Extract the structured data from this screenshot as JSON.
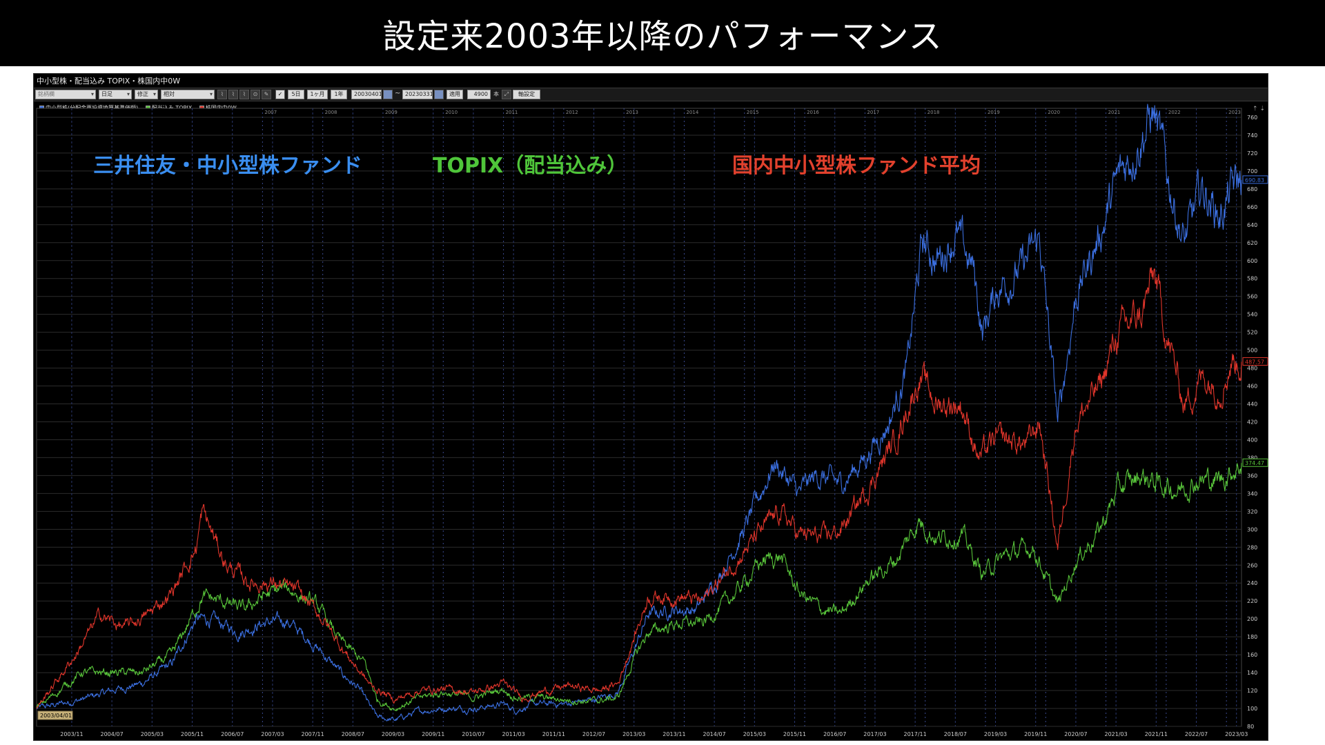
{
  "slide": {
    "title": "設定来2003年以降のパフォーマンス"
  },
  "window": {
    "title": "中小型株・配当込み TOPIX・株国内中0W"
  },
  "toolbar": {
    "search_placeholder": "銘柄欄",
    "period_select": "日足",
    "adjust_select": "修正",
    "mode_select": "相対",
    "btn_5d": "5日",
    "btn_1m": "1ヶ月",
    "btn_1y": "1年",
    "start_date": "20030401",
    "range_sep": "~",
    "end_date": "20230331",
    "apply": "適用",
    "count": "4900",
    "count_unit": "本",
    "axis_settings": "軸設定"
  },
  "legend": [
    {
      "label": "中小型株(分配金再投資換算基準価額)",
      "color": "#3b6fe0"
    },
    {
      "label": "配当込み TOPIX",
      "color": "#58c43a"
    },
    {
      "label": "株国内中0W",
      "color": "#e0352b"
    }
  ],
  "annotations": [
    {
      "text": "三井住友・中小型株ファンド",
      "color": "#3a8ef0"
    },
    {
      "text": "TOPIX（配当込み）",
      "color": "#4fc53a"
    },
    {
      "text": "国内中小型株ファンド平均",
      "color": "#e2412d"
    }
  ],
  "chart_data": {
    "type": "line",
    "x_range": [
      "2003/04/01",
      "2023/03/31"
    ],
    "start_label": "2003/04/01",
    "ylim": [
      80,
      770
    ],
    "y_ticks": [
      80,
      100,
      120,
      140,
      160,
      180,
      200,
      220,
      240,
      260,
      280,
      300,
      320,
      340,
      360,
      380,
      400,
      420,
      440,
      460,
      480,
      500,
      520,
      540,
      560,
      580,
      600,
      620,
      640,
      660,
      680,
      700,
      720,
      740,
      760
    ],
    "x_ticks": [
      "2003/11",
      "2004/07",
      "2005/03",
      "2005/11",
      "2006/07",
      "2007/03",
      "2007/11",
      "2008/07",
      "2009/03",
      "2009/11",
      "2010/07",
      "2011/03",
      "2011/11",
      "2012/07",
      "2013/03",
      "2013/11",
      "2014/07",
      "2015/03",
      "2015/11",
      "2016/07",
      "2017/03",
      "2017/11",
      "2018/07",
      "2019/03",
      "2019/11",
      "2020/07",
      "2021/03",
      "2021/11",
      "2022/07",
      "2023/03"
    ],
    "year_labels": [
      "2007",
      "2008",
      "2009",
      "2010",
      "2011",
      "2012",
      "2013",
      "2014",
      "2015",
      "2016",
      "2017",
      "2018",
      "2019",
      "2020",
      "2021",
      "2022",
      "2023"
    ],
    "series": [
      {
        "name": "中小型株(分配金再投資換算基準価額)",
        "color": "#3b6fe0",
        "last_label": "690.83",
        "points": [
          [
            2003.25,
            100
          ],
          [
            2004.0,
            110
          ],
          [
            2004.5,
            120
          ],
          [
            2005.0,
            128
          ],
          [
            2005.5,
            150
          ],
          [
            2005.9,
            200
          ],
          [
            2006.2,
            198
          ],
          [
            2006.6,
            185
          ],
          [
            2007.0,
            195
          ],
          [
            2007.4,
            198
          ],
          [
            2007.8,
            175
          ],
          [
            2008.3,
            140
          ],
          [
            2008.6,
            122
          ],
          [
            2008.9,
            90
          ],
          [
            2009.2,
            87
          ],
          [
            2009.6,
            97
          ],
          [
            2010.0,
            100
          ],
          [
            2010.5,
            100
          ],
          [
            2011.0,
            105
          ],
          [
            2011.2,
            98
          ],
          [
            2011.5,
            105
          ],
          [
            2012.0,
            105
          ],
          [
            2012.5,
            110
          ],
          [
            2012.9,
            118
          ],
          [
            2013.2,
            170
          ],
          [
            2013.4,
            205
          ],
          [
            2013.8,
            210
          ],
          [
            2014.2,
            210
          ],
          [
            2014.6,
            250
          ],
          [
            2015.0,
            300
          ],
          [
            2015.5,
            375
          ],
          [
            2015.9,
            340
          ],
          [
            2016.2,
            360
          ],
          [
            2016.6,
            350
          ],
          [
            2017.0,
            380
          ],
          [
            2017.4,
            420
          ],
          [
            2017.7,
            480
          ],
          [
            2017.95,
            620
          ],
          [
            2018.2,
            600
          ],
          [
            2018.5,
            630
          ],
          [
            2018.8,
            590
          ],
          [
            2018.95,
            520
          ],
          [
            2019.2,
            570
          ],
          [
            2019.6,
            590
          ],
          [
            2019.9,
            625
          ],
          [
            2020.2,
            420
          ],
          [
            2020.5,
            560
          ],
          [
            2020.9,
            630
          ],
          [
            2021.2,
            690
          ],
          [
            2021.5,
            730
          ],
          [
            2021.8,
            765
          ],
          [
            2022.0,
            700
          ],
          [
            2022.3,
            620
          ],
          [
            2022.6,
            680
          ],
          [
            2022.9,
            650
          ],
          [
            2023.1,
            680
          ],
          [
            2023.25,
            690
          ]
        ]
      },
      {
        "name": "配当込み TOPIX",
        "color": "#58c43a",
        "last_label": "374.47",
        "points": [
          [
            2003.25,
            100
          ],
          [
            2004.0,
            140
          ],
          [
            2004.5,
            140
          ],
          [
            2005.0,
            140
          ],
          [
            2005.5,
            160
          ],
          [
            2006.0,
            225
          ],
          [
            2006.3,
            220
          ],
          [
            2006.7,
            210
          ],
          [
            2007.0,
            225
          ],
          [
            2007.4,
            235
          ],
          [
            2007.9,
            215
          ],
          [
            2008.3,
            175
          ],
          [
            2008.7,
            150
          ],
          [
            2008.9,
            110
          ],
          [
            2009.2,
            100
          ],
          [
            2009.6,
            112
          ],
          [
            2010.0,
            118
          ],
          [
            2010.5,
            112
          ],
          [
            2011.0,
            122
          ],
          [
            2011.2,
            112
          ],
          [
            2011.6,
            112
          ],
          [
            2012.0,
            110
          ],
          [
            2012.5,
            108
          ],
          [
            2012.9,
            112
          ],
          [
            2013.2,
            160
          ],
          [
            2013.4,
            185
          ],
          [
            2013.9,
            195
          ],
          [
            2014.3,
            195
          ],
          [
            2014.8,
            225
          ],
          [
            2015.3,
            265
          ],
          [
            2015.6,
            270
          ],
          [
            2015.9,
            230
          ],
          [
            2016.3,
            210
          ],
          [
            2016.6,
            205
          ],
          [
            2017.0,
            240
          ],
          [
            2017.5,
            265
          ],
          [
            2017.9,
            310
          ],
          [
            2018.2,
            290
          ],
          [
            2018.6,
            295
          ],
          [
            2018.95,
            250
          ],
          [
            2019.3,
            270
          ],
          [
            2019.8,
            280
          ],
          [
            2020.2,
            215
          ],
          [
            2020.5,
            265
          ],
          [
            2020.9,
            300
          ],
          [
            2021.2,
            345
          ],
          [
            2021.6,
            360
          ],
          [
            2021.9,
            350
          ],
          [
            2022.2,
            345
          ],
          [
            2022.5,
            355
          ],
          [
            2022.9,
            355
          ],
          [
            2023.25,
            374
          ]
        ]
      },
      {
        "name": "株国内中0W",
        "color": "#e0352b",
        "last_label": "487.57",
        "points": [
          [
            2003.25,
            100
          ],
          [
            2003.9,
            160
          ],
          [
            2004.3,
            205
          ],
          [
            2004.7,
            190
          ],
          [
            2005.1,
            205
          ],
          [
            2005.5,
            230
          ],
          [
            2005.9,
            280
          ],
          [
            2006.0,
            320
          ],
          [
            2006.4,
            260
          ],
          [
            2006.8,
            240
          ],
          [
            2007.2,
            240
          ],
          [
            2007.6,
            230
          ],
          [
            2008.0,
            200
          ],
          [
            2008.4,
            160
          ],
          [
            2008.8,
            125
          ],
          [
            2009.2,
            110
          ],
          [
            2009.6,
            120
          ],
          [
            2010.0,
            122
          ],
          [
            2010.5,
            118
          ],
          [
            2011.0,
            128
          ],
          [
            2011.3,
            112
          ],
          [
            2011.7,
            120
          ],
          [
            2012.1,
            125
          ],
          [
            2012.6,
            120
          ],
          [
            2012.9,
            128
          ],
          [
            2013.2,
            185
          ],
          [
            2013.4,
            225
          ],
          [
            2013.9,
            225
          ],
          [
            2014.3,
            220
          ],
          [
            2014.8,
            260
          ],
          [
            2015.3,
            300
          ],
          [
            2015.6,
            320
          ],
          [
            2015.9,
            295
          ],
          [
            2016.3,
            290
          ],
          [
            2016.6,
            300
          ],
          [
            2017.0,
            340
          ],
          [
            2017.5,
            400
          ],
          [
            2017.9,
            470
          ],
          [
            2018.2,
            440
          ],
          [
            2018.6,
            440
          ],
          [
            2018.9,
            380
          ],
          [
            2019.2,
            400
          ],
          [
            2019.7,
            395
          ],
          [
            2019.9,
            420
          ],
          [
            2020.2,
            280
          ],
          [
            2020.5,
            420
          ],
          [
            2020.9,
            460
          ],
          [
            2021.2,
            520
          ],
          [
            2021.6,
            540
          ],
          [
            2021.8,
            585
          ],
          [
            2022.0,
            520
          ],
          [
            2022.3,
            440
          ],
          [
            2022.6,
            470
          ],
          [
            2022.9,
            460
          ],
          [
            2023.1,
            490
          ],
          [
            2023.25,
            487
          ]
        ]
      }
    ]
  }
}
